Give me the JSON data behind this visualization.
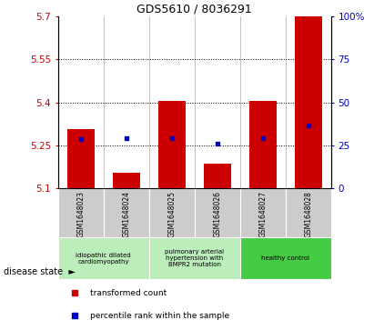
{
  "title": "GDS5610 / 8036291",
  "samples": [
    "GSM1648023",
    "GSM1648024",
    "GSM1648025",
    "GSM1648026",
    "GSM1648027",
    "GSM1648028"
  ],
  "bar_values": [
    5.305,
    5.155,
    5.405,
    5.185,
    5.405,
    5.7
  ],
  "percentile_values": [
    5.27,
    5.275,
    5.275,
    5.255,
    5.275,
    5.32
  ],
  "y_min": 5.1,
  "y_max": 5.7,
  "y_ticks": [
    5.1,
    5.25,
    5.4,
    5.55,
    5.7
  ],
  "y_tick_labels": [
    "5.1",
    "5.25",
    "5.4",
    "5.55",
    "5.7"
  ],
  "y2_ticks": [
    0,
    25,
    50,
    75,
    100
  ],
  "y2_tick_labels": [
    "0",
    "25",
    "50",
    "75",
    "100%"
  ],
  "bar_color": "#cc0000",
  "percentile_color": "#0000cc",
  "bar_bottom": 5.1,
  "group_defs": [
    {
      "start": 0,
      "end": 1,
      "label": "idiopathic dilated\ncardiomyopathy",
      "color": "#bbeebb"
    },
    {
      "start": 2,
      "end": 3,
      "label": "pulmonary arterial\nhypertension with\nBMPR2 mutation",
      "color": "#bbeebb"
    },
    {
      "start": 4,
      "end": 5,
      "label": "healthy control",
      "color": "#44cc44"
    }
  ],
  "disease_state_label": "disease state",
  "legend_items": [
    {
      "color": "#cc0000",
      "label": "transformed count"
    },
    {
      "color": "#0000cc",
      "label": "percentile rank within the sample"
    }
  ],
  "sample_bg_color": "#cccccc",
  "dotted_lines": [
    5.25,
    5.4,
    5.55
  ]
}
